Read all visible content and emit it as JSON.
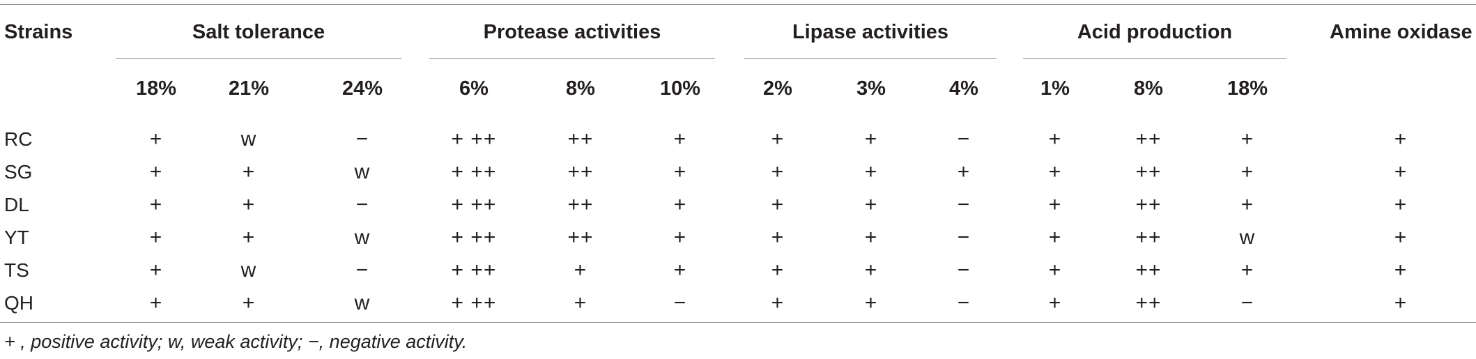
{
  "table": {
    "strain_header": "Strains",
    "groups": [
      {
        "label": "Salt tolerance",
        "subs": [
          "18%",
          "21%",
          "24%"
        ]
      },
      {
        "label": "Protease activities",
        "subs": [
          "6%",
          "8%",
          "10%"
        ]
      },
      {
        "label": "Lipase activities",
        "subs": [
          "2%",
          "3%",
          "4%"
        ]
      },
      {
        "label": "Acid production",
        "subs": [
          "1%",
          "8%",
          "18%"
        ]
      }
    ],
    "last_header": "Amine oxidase",
    "rows": [
      {
        "strain": "RC",
        "values": [
          "+",
          "w",
          "−",
          "+ ++",
          "++",
          "+",
          "+",
          "+",
          "−",
          "+",
          "++",
          "+",
          "+"
        ]
      },
      {
        "strain": "SG",
        "values": [
          "+",
          "+",
          "w",
          "+ ++",
          "++",
          "+",
          "+",
          "+",
          "+",
          "+",
          "++",
          "+",
          "+"
        ]
      },
      {
        "strain": "DL",
        "values": [
          "+",
          "+",
          "−",
          "+ ++",
          "++",
          "+",
          "+",
          "+",
          "−",
          "+",
          "++",
          "+",
          "+"
        ]
      },
      {
        "strain": "YT",
        "values": [
          "+",
          "+",
          "w",
          "+ ++",
          "++",
          "+",
          "+",
          "+",
          "−",
          "+",
          "++",
          "w",
          "+"
        ]
      },
      {
        "strain": "TS",
        "values": [
          "+",
          "w",
          "−",
          "+ ++",
          "+",
          "+",
          "+",
          "+",
          "−",
          "+",
          "++",
          "+",
          "+"
        ]
      },
      {
        "strain": "QH",
        "values": [
          "+",
          "+",
          "w",
          "+ ++",
          "+",
          "−",
          "+",
          "+",
          "−",
          "+",
          "++",
          "−",
          "+"
        ]
      }
    ]
  },
  "footnote": "+ , positive activity; w, weak activity; −, negative activity."
}
